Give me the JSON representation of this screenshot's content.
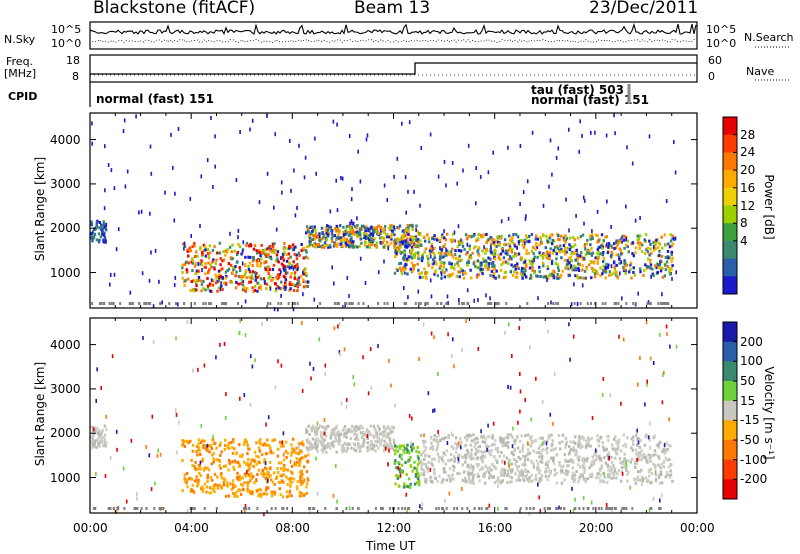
{
  "header": {
    "radar": "Blackstone (fitACF)",
    "beam": "Beam 13",
    "date": "23/Dec/2011"
  },
  "left_labels": {
    "nsky": "N.Sky",
    "freq": "Freq.",
    "freq_unit": "[MHz]",
    "cpid": "CPID"
  },
  "right_labels": {
    "nsearch": "N.Search",
    "nave": "Nave"
  },
  "nsky_ticks": [
    "10^5",
    "10^0"
  ],
  "nsearch_ticks": [
    "10^5",
    "10^0"
  ],
  "freq_ticks": [
    "18",
    "8"
  ],
  "nave_ticks": [
    "60",
    "0"
  ],
  "cpid_texts": [
    "normal (fast) 151",
    "tau (fast) 503",
    "normal (fast) 151"
  ],
  "colors": {
    "scatter": "#808080",
    "blue": "#1f1fd6"
  },
  "chart_data": [
    {
      "type": "heatmap",
      "name": "power",
      "ylabel": "Slant Range [km]",
      "yticks": [
        "1000",
        "2000",
        "3000",
        "4000"
      ],
      "ylim": [
        200,
        4600
      ],
      "xlim": [
        0,
        24
      ],
      "colorbar": {
        "title": "Power [dB]",
        "labels": [
          "28",
          "24",
          "20",
          "16",
          "12",
          "8",
          "4"
        ],
        "colors": [
          "#e60000",
          "#ff3c00",
          "#ff7800",
          "#ffaa00",
          "#f0d000",
          "#9cd000",
          "#3fa03f",
          "#3a8a6e",
          "#2a5ea8",
          "#1a1acc"
        ]
      },
      "features": [
        {
          "t0": 0.0,
          "t1": 0.6,
          "r0": 1700,
          "r1": 2200,
          "level": "low"
        },
        {
          "t0": 3.6,
          "t1": 8.6,
          "r0": 600,
          "r1": 1700,
          "level": "high"
        },
        {
          "t0": 8.5,
          "t1": 13.0,
          "r0": 1600,
          "r1": 2100,
          "level": "mid"
        },
        {
          "t0": 12.0,
          "t1": 13.0,
          "r0": 1000,
          "r1": 1800,
          "level": "mid"
        },
        {
          "t0": 13.0,
          "t1": 23.0,
          "r0": 900,
          "r1": 1900,
          "level": "mid"
        }
      ]
    },
    {
      "type": "heatmap",
      "name": "velocity",
      "ylabel": "Slant Range [km]",
      "xlabel": "Time UT",
      "xticks": [
        "00:00",
        "04:00",
        "08:00",
        "12:00",
        "16:00",
        "20:00",
        "00:00"
      ],
      "yticks": [
        "1000",
        "2000",
        "3000",
        "4000"
      ],
      "ylim": [
        200,
        4600
      ],
      "xlim": [
        0,
        24
      ],
      "colorbar": {
        "title": "Velocity [m s⁻¹]",
        "labels": [
          "200",
          "100",
          "50",
          "15",
          "-15",
          "-50",
          "-100",
          "-200"
        ],
        "colors": [
          "#1a1aaa",
          "#2a5ea8",
          "#3a8a6e",
          "#6fd23a",
          "#c8c8c0",
          "#ffaa00",
          "#ff7800",
          "#ff3c00",
          "#e60000"
        ]
      },
      "features": [
        {
          "t0": 0.0,
          "t1": 0.6,
          "r0": 1700,
          "r1": 2200,
          "vel": "grey"
        },
        {
          "t0": 3.6,
          "t1": 8.6,
          "r0": 600,
          "r1": 1900,
          "vel": "negative"
        },
        {
          "t0": 8.5,
          "t1": 12.0,
          "r0": 1600,
          "r1": 2200,
          "vel": "grey"
        },
        {
          "t0": 12.0,
          "t1": 13.0,
          "r0": 800,
          "r1": 1800,
          "vel": "positive"
        },
        {
          "t0": 13.0,
          "t1": 23.0,
          "r0": 900,
          "r1": 2000,
          "vel": "grey"
        }
      ]
    }
  ]
}
